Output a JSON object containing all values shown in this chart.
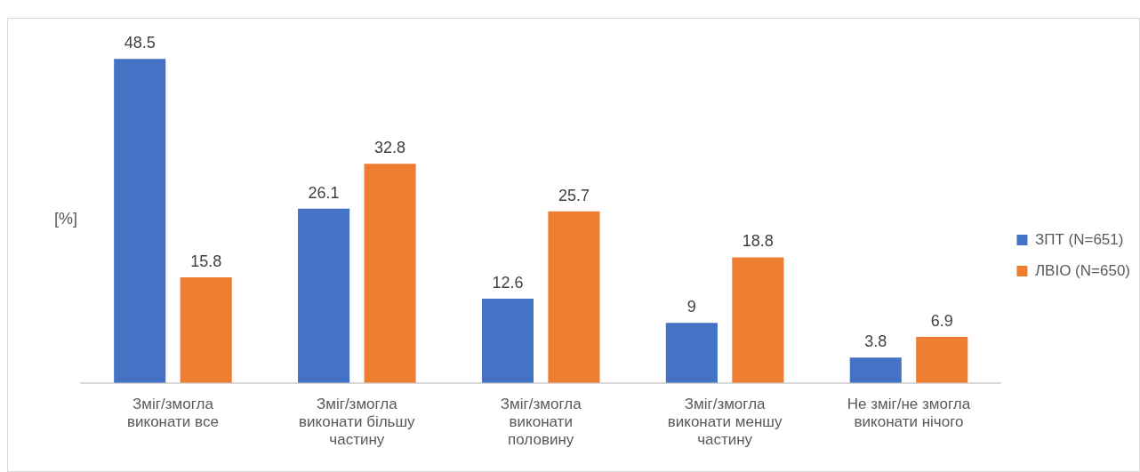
{
  "chart_data": {
    "type": "bar",
    "ylabel": "[%]",
    "categories": [
      "Зміг/змогла виконати все",
      "Зміг/змогла виконати більшу частину",
      "Зміг/змогла виконати половину",
      "Зміг/змогла виконати меншу частину",
      "Не зміг/не змогла виконати нічого"
    ],
    "series": [
      {
        "name": "ЗПТ (N=651)",
        "color": "#4472c4",
        "values": [
          48.5,
          26.1,
          12.6,
          9,
          3.8
        ]
      },
      {
        "name": "ЛВІО (N=650)",
        "color": "#ed7d31",
        "values": [
          15.8,
          32.8,
          25.7,
          18.8,
          6.9
        ]
      }
    ],
    "tick_labels": "x",
    "data_labels": true,
    "grid": false,
    "legend": "right"
  }
}
